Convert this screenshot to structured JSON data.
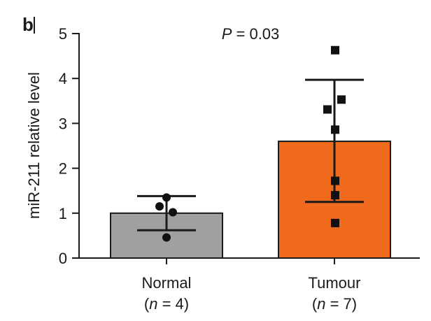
{
  "panel_label": "b",
  "chart_data": {
    "type": "bar",
    "categories": [
      "Normal",
      "Tumour"
    ],
    "category_sublabels": [
      {
        "open": "(",
        "n": "n",
        "rest": " = 4)"
      },
      {
        "open": "(",
        "n": "n",
        "rest": " = 7)"
      }
    ],
    "values": [
      1.0,
      2.6
    ],
    "error_bars": [
      {
        "upper": 1.38,
        "lower": 0.62
      },
      {
        "upper": 3.97,
        "lower": 1.25
      }
    ],
    "points": [
      [
        1.35,
        1.15,
        1.02,
        0.46
      ],
      [
        4.63,
        3.53,
        3.31,
        2.86,
        1.72,
        1.4,
        0.78
      ]
    ],
    "bar_colors": [
      "#a0a0a0",
      "#f06a1e"
    ],
    "ylabel": "miR-211 relative level",
    "ylim": [
      0,
      5
    ],
    "yticks": [
      "0",
      "1",
      "2",
      "3",
      "4",
      "5"
    ],
    "annotation": {
      "italic": "P",
      "rest": " = 0.03"
    }
  }
}
